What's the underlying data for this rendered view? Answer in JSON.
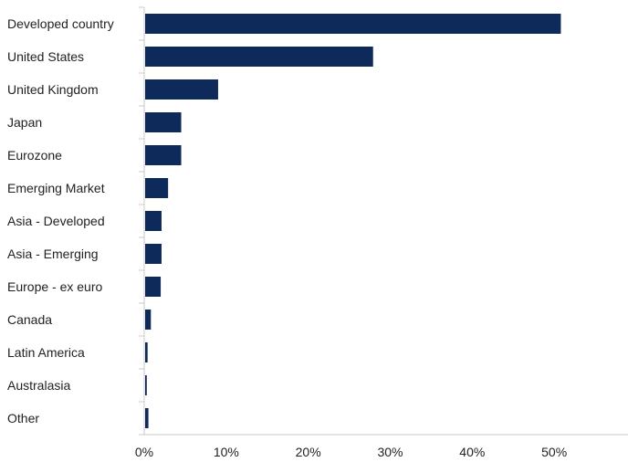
{
  "chart_data": {
    "type": "bar",
    "orientation": "horizontal",
    "title": "",
    "xlabel": "",
    "ylabel": "",
    "categories": [
      "Developed country",
      "United States",
      "United Kingdom",
      "Japan",
      "Eurozone",
      "Emerging Market",
      "Asia - Developed",
      "Asia - Emerging",
      "Europe - ex euro",
      "Canada",
      "Latin America",
      "Australasia",
      "Other"
    ],
    "values": [
      50.7,
      27.8,
      8.9,
      4.4,
      4.4,
      2.8,
      2.0,
      2.0,
      1.9,
      0.7,
      0.3,
      0.2,
      0.4
    ],
    "xlim": [
      0,
      59
    ],
    "x_ticks": [
      0,
      10,
      20,
      30,
      40,
      50
    ],
    "x_tick_labels": [
      "0%",
      "10%",
      "20%",
      "30%",
      "40%",
      "50%"
    ],
    "grid": false,
    "legend": "none",
    "bar_color": "#0d2a5a",
    "axis_color": "#c8c8c8"
  }
}
